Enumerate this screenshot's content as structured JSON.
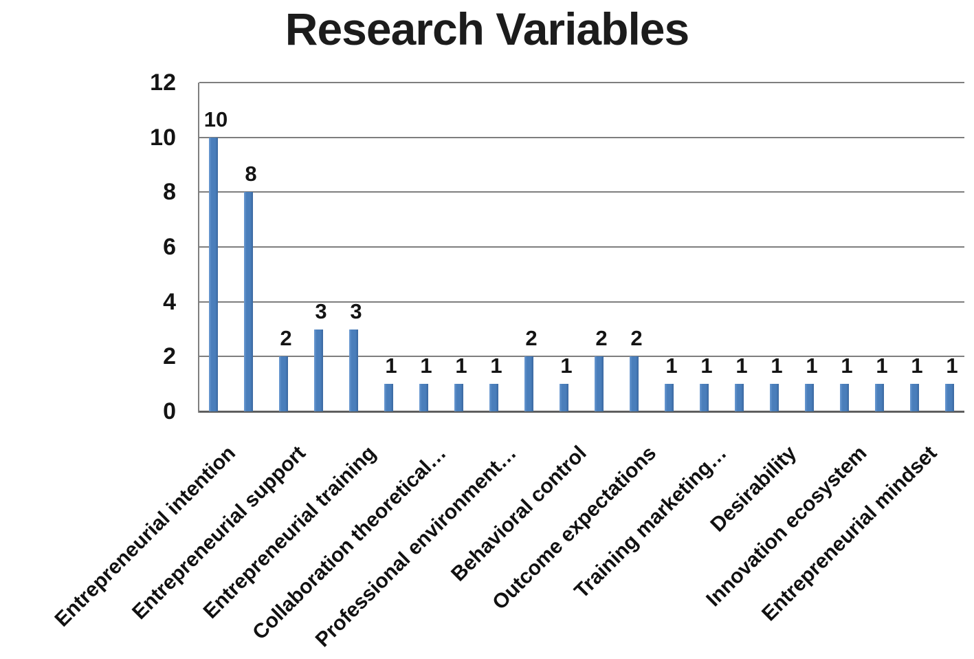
{
  "chart_data": {
    "type": "bar",
    "title": "Research Variables",
    "xlabel": "",
    "ylabel": "",
    "ylim": [
      0,
      12
    ],
    "yticks": [
      0,
      2,
      4,
      6,
      8,
      10,
      12
    ],
    "grid": true,
    "legend": "none",
    "data_labels": true,
    "bar_color": "#4A7EBB",
    "gridline_color": "#7E7E7E",
    "axis_color": "#5E5E5E",
    "text_color": "#141414",
    "categories": [
      "Entrepreneurial intention",
      "",
      "Entrepreneurial support",
      "",
      "Entrepreneurial training",
      "",
      "Collaboration theoretical…",
      "",
      "Professional environment…",
      "",
      "Behavioral control",
      "",
      "Outcome expectations",
      "",
      "Training marketing…",
      "",
      "Desirability",
      "",
      "Innovation ecosystem",
      "",
      "Entrepreneurial mindset",
      ""
    ],
    "values": [
      10,
      8,
      2,
      3,
      3,
      1,
      1,
      1,
      1,
      2,
      1,
      2,
      2,
      1,
      1,
      1,
      1,
      1,
      1,
      1,
      1,
      1
    ],
    "bars": [
      {
        "label": "Entrepreneurial intention",
        "value": 10
      },
      {
        "label": "",
        "value": 8
      },
      {
        "label": "Entrepreneurial support",
        "value": 2
      },
      {
        "label": "",
        "value": 3
      },
      {
        "label": "Entrepreneurial training",
        "value": 3
      },
      {
        "label": "",
        "value": 1
      },
      {
        "label": "Collaboration theoretical…",
        "value": 1
      },
      {
        "label": "",
        "value": 1
      },
      {
        "label": "Professional environment…",
        "value": 1
      },
      {
        "label": "",
        "value": 2
      },
      {
        "label": "Behavioral control",
        "value": 1
      },
      {
        "label": "",
        "value": 2
      },
      {
        "label": "Outcome expectations",
        "value": 2
      },
      {
        "label": "",
        "value": 1
      },
      {
        "label": "Training marketing…",
        "value": 1
      },
      {
        "label": "",
        "value": 1
      },
      {
        "label": "Desirability",
        "value": 1
      },
      {
        "label": "",
        "value": 1
      },
      {
        "label": "Innovation ecosystem",
        "value": 1
      },
      {
        "label": "",
        "value": 1
      },
      {
        "label": "Entrepreneurial mindset",
        "value": 1
      },
      {
        "label": "",
        "value": 1
      }
    ]
  }
}
